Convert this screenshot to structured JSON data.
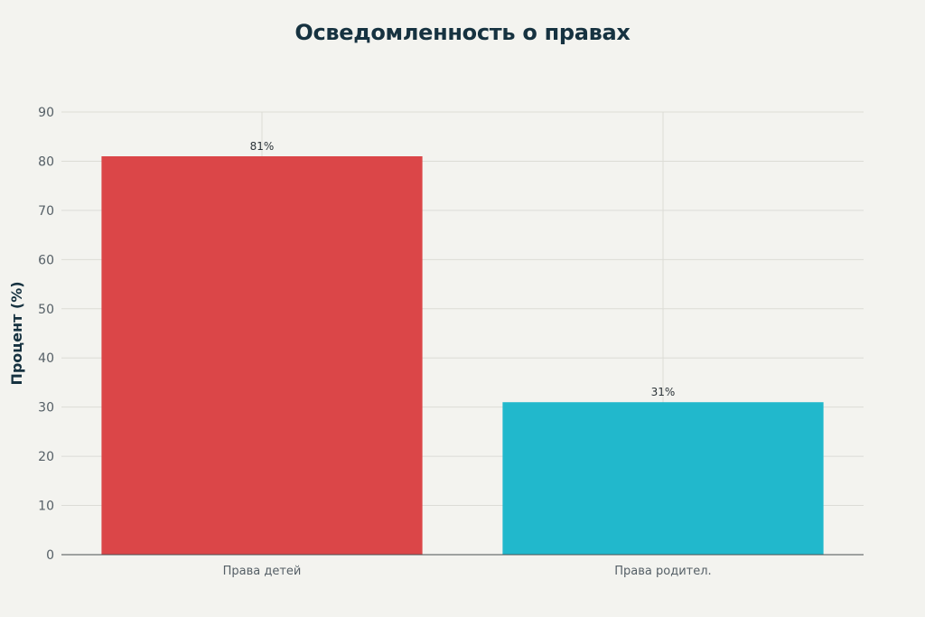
{
  "chart_data": {
    "type": "bar",
    "title": "Осведомленность о правах",
    "xlabel": "",
    "ylabel": "Процент (%)",
    "categories": [
      "Права детей",
      "Права родител."
    ],
    "values": [
      81,
      31
    ],
    "value_labels": [
      "81%",
      "31%"
    ],
    "colors": [
      "#db4648",
      "#21b8cc"
    ],
    "ylim": [
      0,
      90
    ],
    "yticks": [
      0,
      10,
      20,
      30,
      40,
      50,
      60,
      70,
      80,
      90
    ],
    "grid": true,
    "legend": "none"
  }
}
